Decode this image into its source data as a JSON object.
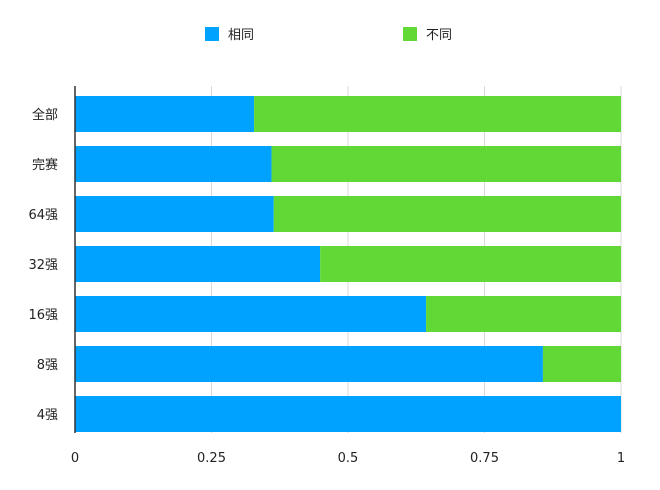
{
  "chart_data": {
    "type": "bar",
    "orientation": "horizontal",
    "stacked": true,
    "categories": [
      "全部",
      "完赛",
      "64强",
      "32强",
      "16强",
      "8强",
      "4强"
    ],
    "series": [
      {
        "name": "相同",
        "color": "#00a2ff",
        "values": [
          0.328,
          0.36,
          0.364,
          0.449,
          0.643,
          0.857,
          1.0
        ]
      },
      {
        "name": "不同",
        "color": "#61d836",
        "values": [
          0.672,
          0.64,
          0.636,
          0.551,
          0.357,
          0.143,
          0.0
        ]
      }
    ],
    "xlim": [
      0,
      1
    ],
    "xticks": [
      "0",
      "0.25",
      "0.5",
      "0.75",
      "1"
    ],
    "grid": true,
    "legend_position": "top"
  }
}
